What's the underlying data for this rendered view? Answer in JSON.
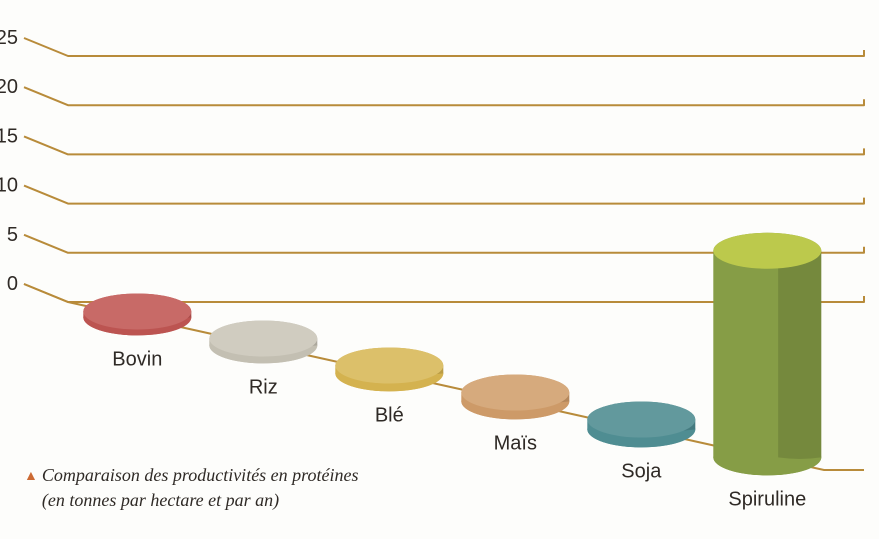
{
  "chart": {
    "type": "bar-3d-cylinder",
    "background_color": "#fdfdfb",
    "grid_color": "#b88b3a",
    "ylim": [
      0,
      25
    ],
    "ytick_step": 5,
    "yticks": [
      0,
      5,
      10,
      15,
      20,
      25
    ],
    "yaxis_fontsize": 20,
    "xaxis_fontsize": 20,
    "caption_fontsize": 18,
    "series": [
      {
        "label": "Bovin",
        "value": 0.6,
        "color": "#bc5451",
        "top_color": "#c86a67"
      },
      {
        "label": "Riz",
        "value": 0.7,
        "color": "#c3bfb2",
        "top_color": "#d0ccc0"
      },
      {
        "label": "Blé",
        "value": 0.8,
        "color": "#d4b24f",
        "top_color": "#dcc06a"
      },
      {
        "label": "Maïs",
        "value": 0.9,
        "color": "#cd9a68",
        "top_color": "#d6aa7d"
      },
      {
        "label": "Soja",
        "value": 1.0,
        "color": "#4f8d92",
        "top_color": "#62999d"
      },
      {
        "label": "Spiruline",
        "value": 21,
        "color": "#869d46",
        "top_color": "#bcc94c"
      }
    ]
  },
  "caption": {
    "triangle_color": "#cc6a33",
    "line1": "Comparaison des productivités en protéines",
    "line2": "(en tonnes par hectare et par an)"
  }
}
